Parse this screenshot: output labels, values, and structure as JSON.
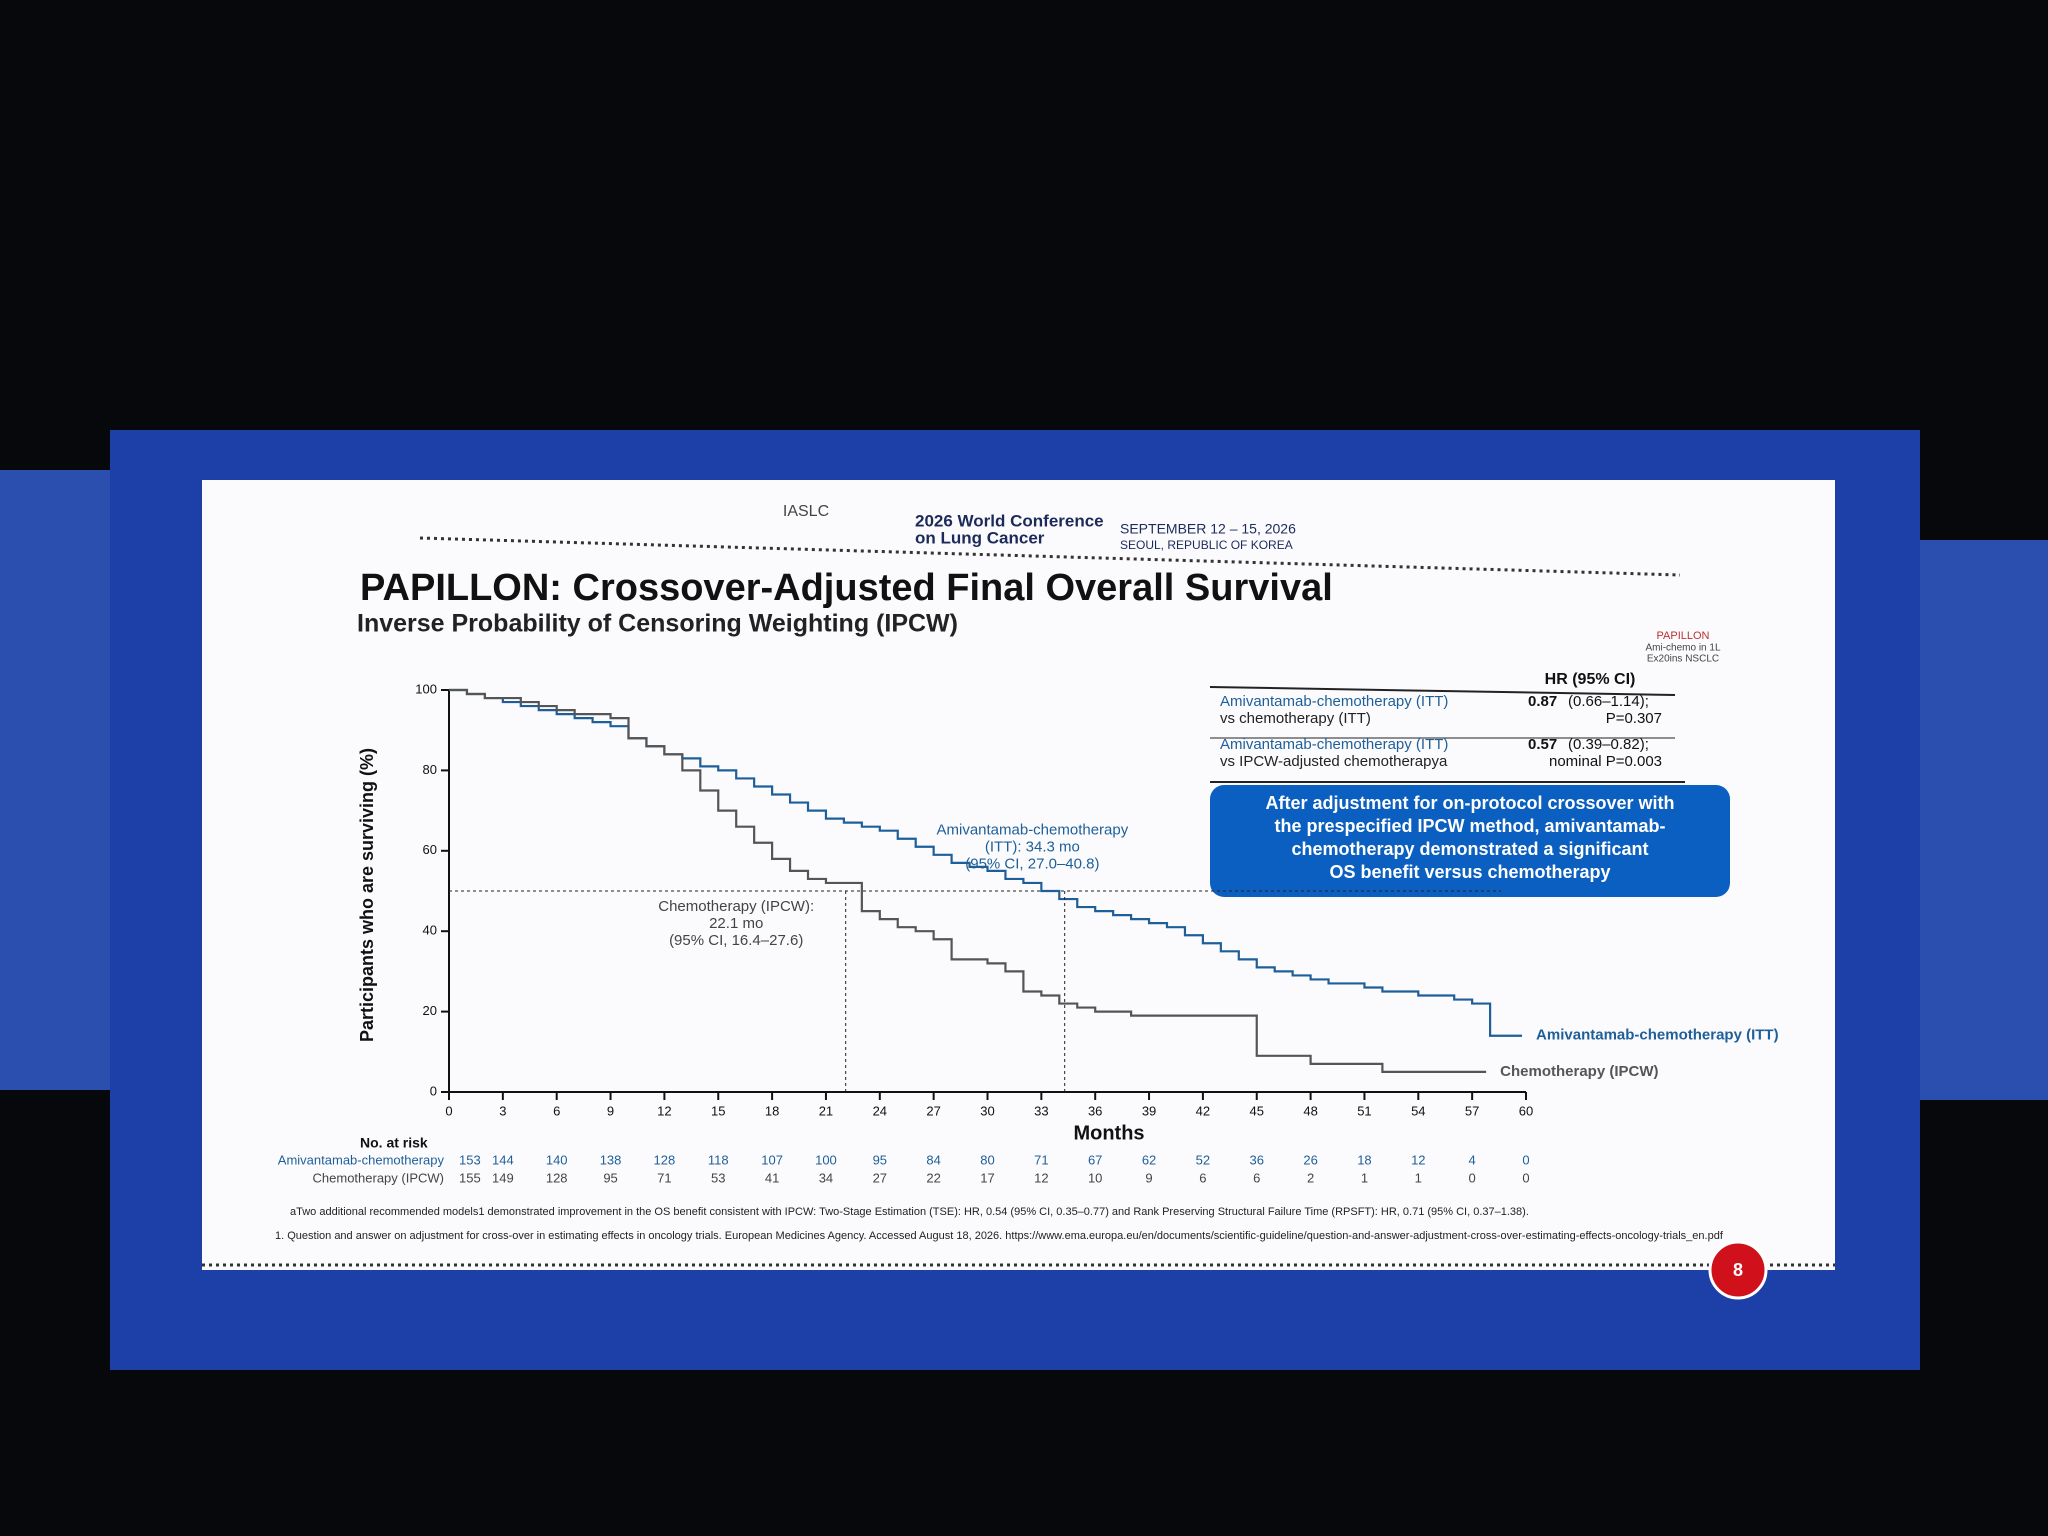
{
  "slide": {
    "header": {
      "society": "IASLC",
      "conference": [
        "2026 World Conference",
        "on Lung Cancer"
      ],
      "dates": "SEPTEMBER 12 – 15, 2026",
      "place": "SEOUL, REPUBLIC OF KOREA"
    },
    "logo": [
      "PAPILLON",
      "Ami-chemo in 1L",
      "Ex20ins NSCLC"
    ],
    "hr_table": {
      "header": "HR (95% CI)",
      "rows": [
        {
          "label": [
            "Amivantamab-chemotherapy (ITT)",
            "vs chemotherapy (ITT)"
          ],
          "hr": "0.87",
          "ci": "(0.66–1.14);",
          "p": "P=0.307"
        },
        {
          "label": [
            "Amivantamab-chemotherapy (ITT)",
            "vs IPCW-adjusted chemotherapya"
          ],
          "hr": "0.57",
          "ci": "(0.39–0.82);",
          "p": "nominal P=0.003"
        }
      ]
    },
    "callout": [
      "After adjustment for on-protocol crossover with",
      "the prespecified IPCW method, amivantamab-",
      "chemotherapy demonstrated a significant",
      "OS benefit versus chemotherapy"
    ],
    "footnotes": [
      "aTwo additional recommended models1 demonstrated improvement in the OS benefit consistent with IPCW: Two-Stage Estimation (TSE): HR, 0.54 (95% CI, 0.35–0.77) and Rank Preserving Structural Failure Time (RPSFT): HR, 0.71 (95% CI, 0.37–1.38).",
      "1. Question and answer on adjustment for cross-over in estimating effects in oncology trials. European Medicines Agency. Accessed August 18, 2026. https://www.ema.europa.eu/en/documents/scientific-guideline/question-and-answer-adjustment-cross-over-estimating-effects-oncology-trials_en.pdf"
    ],
    "page": "8"
  },
  "chart_data": {
    "type": "step",
    "title": "PAPILLON: Crossover-Adjusted Final Overall Survival",
    "subtitle": "Inverse Probability of Censoring Weighting (IPCW)",
    "x_label": "Months",
    "y_label": "Participants who are surviving (%)",
    "xlim": [
      0,
      60
    ],
    "xticks": [
      0,
      3,
      6,
      9,
      12,
      15,
      18,
      21,
      24,
      27,
      30,
      33,
      36,
      39,
      42,
      45,
      48,
      51,
      54,
      57,
      60
    ],
    "ylim": [
      0,
      100
    ],
    "yticks": [
      0,
      20,
      40,
      60,
      80,
      100
    ],
    "reference_y": 50,
    "series": [
      {
        "name": "Amivantamab-chemotherapy (ITT)",
        "color": "#1f5f99",
        "median": 34.3,
        "annotation": [
          "Amivantamab-chemotherapy",
          "(ITT): 34.3 mo",
          "(95% CI, 27.0–40.8)"
        ],
        "x": [
          0,
          1,
          2,
          3,
          4,
          5,
          6,
          7,
          8,
          9,
          10,
          11,
          12,
          13,
          14,
          15,
          16,
          17,
          18,
          19,
          20,
          21,
          22,
          23,
          24,
          25,
          26,
          27,
          28,
          29,
          30,
          31,
          32,
          33,
          34,
          35,
          36,
          37,
          38,
          39,
          40,
          41,
          42,
          43,
          44,
          45,
          46,
          47,
          48,
          49,
          51,
          52,
          54,
          56,
          57,
          58,
          59
        ],
        "values": [
          100,
          99,
          98,
          97,
          96,
          95,
          94,
          93,
          92,
          91,
          88,
          86,
          84,
          83,
          81,
          80,
          78,
          76,
          74,
          72,
          70,
          68,
          67,
          66,
          65,
          63,
          61,
          59,
          57,
          56,
          55,
          53,
          52,
          50,
          48,
          46,
          45,
          44,
          43,
          42,
          41,
          39,
          37,
          35,
          33,
          31,
          30,
          29,
          28,
          27,
          26,
          25,
          24,
          23,
          22,
          14,
          14
        ]
      },
      {
        "name": "Chemotherapy (IPCW)",
        "color": "#555555",
        "median": 22.1,
        "annotation": [
          "Chemotherapy (IPCW):",
          "22.1 mo",
          "(95% CI, 16.4–27.6)"
        ],
        "x": [
          0,
          1,
          2,
          4,
          5,
          6,
          7,
          9,
          10,
          11,
          12,
          13,
          14,
          15,
          16,
          17,
          18,
          19,
          20,
          21,
          23,
          24,
          25,
          26,
          27,
          28,
          30,
          31,
          32,
          33,
          34,
          35,
          36,
          38,
          45,
          48,
          52,
          57
        ],
        "values": [
          100,
          99,
          98,
          97,
          96,
          95,
          94,
          93,
          88,
          86,
          84,
          80,
          75,
          70,
          66,
          62,
          58,
          55,
          53,
          52,
          45,
          43,
          41,
          40,
          38,
          33,
          32,
          30,
          25,
          24,
          22,
          21,
          20,
          19,
          9,
          7,
          5,
          5
        ]
      }
    ],
    "risk_table": {
      "title": "No. at risk",
      "rows": [
        {
          "name": "Amivantamab-chemotherapy",
          "values": [
            153,
            144,
            140,
            138,
            128,
            118,
            107,
            100,
            95,
            84,
            80,
            71,
            67,
            62,
            52,
            36,
            26,
            18,
            12,
            4,
            0
          ]
        },
        {
          "name": "Chemotherapy (IPCW)",
          "values": [
            155,
            149,
            128,
            95,
            71,
            53,
            41,
            34,
            27,
            22,
            17,
            12,
            10,
            9,
            6,
            6,
            2,
            1,
            1,
            0,
            0
          ]
        }
      ]
    }
  }
}
